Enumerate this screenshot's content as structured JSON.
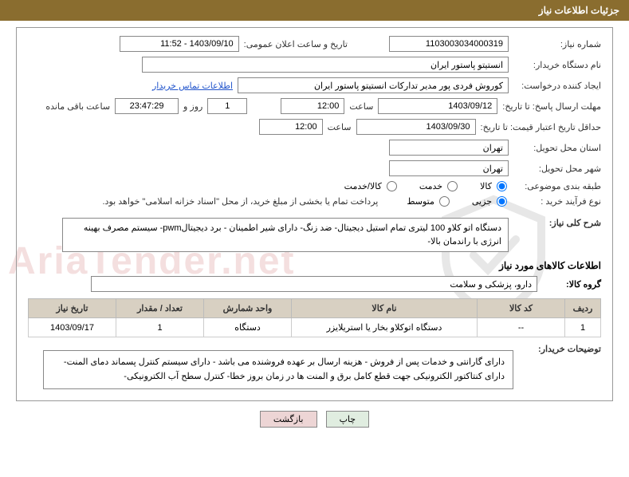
{
  "header": {
    "title": "جزئیات اطلاعات نیاز"
  },
  "fields": {
    "need_no_label": "شماره نیاز:",
    "need_no": "1103003034000319",
    "announce_label": "تاریخ و ساعت اعلان عمومی:",
    "announce_val": "1403/09/10 - 11:52",
    "buyer_org_label": "نام دستگاه خریدار:",
    "buyer_org": "انستیتو پاستور ایران",
    "requester_label": "ایجاد کننده درخواست:",
    "requester": "کوروش فردی پور مدیر تدارکات انستیتو پاستور ایران",
    "contact_link": "اطلاعات تماس خریدار",
    "reply_deadline_label": "مهلت ارسال پاسخ: تا تاریخ:",
    "reply_date": "1403/09/12",
    "time_label": "ساعت",
    "reply_time": "12:00",
    "days_val": "1",
    "days_and": "روز و",
    "countdown": "23:47:29",
    "remaining": "ساعت باقی مانده",
    "min_validity_label": "حداقل تاریخ اعتبار قیمت: تا تاریخ:",
    "min_validity_date": "1403/09/30",
    "min_validity_time": "12:00",
    "province_label": "استان محل تحویل:",
    "province": "تهران",
    "city_label": "شهر محل تحویل:",
    "city": "تهران",
    "subject_class_label": "طبقه بندی موضوعی:",
    "radio_goods": "کالا",
    "radio_service": "خدمت",
    "radio_both": "کالا/خدمت",
    "purchase_type_label": "نوع فرآیند خرید :",
    "radio_minor": "جزیی",
    "radio_medium": "متوسط",
    "payment_note": "پرداخت تمام یا بخشی از مبلغ خرید، از محل \"اسناد خزانه اسلامی\" خواهد بود.",
    "need_desc_label": "شرح کلی نیاز:",
    "need_desc": "دستگاه اتو کلاو 100 لیتری تمام استیل دیجیتال- ضد زنگ- دارای شیر اطمینان - برد دیجیتالpwm- سیستم مصرف بهینه انرژی با راندمان بالا-",
    "goods_section": "اطلاعات کالاهای مورد نیاز",
    "group_label": "گروه کالا:",
    "group_val": "دارو، پزشکی و سلامت",
    "buyer_notes_label": "توضیحات خریدار:",
    "buyer_notes": "دارای گارانتی و خدمات پس از فروش - هزینه ارسال بر عهده فروشنده می باشد - دارای سیستم کنترل پسماند دمای المنت- دارای کنتاکتور الکترونیکی جهت قطع کامل برق و المنت ها در زمان بروز خطا- کنترل سطح آب الکترونیکی-"
  },
  "table": {
    "columns": [
      "ردیف",
      "کد کالا",
      "نام کالا",
      "واحد شمارش",
      "تعداد / مقدار",
      "تاریخ نیاز"
    ],
    "rows": [
      [
        "1",
        "--",
        "دستگاه اتوکلاو بخار یا استریلایزر",
        "دستگاه",
        "1",
        "1403/09/17"
      ]
    ],
    "col_widths": [
      "45px",
      "110px",
      "auto",
      "110px",
      "110px",
      "110px"
    ]
  },
  "buttons": {
    "print": "چاپ",
    "back": "بازگشت"
  },
  "watermark": {
    "text": "AriaTender.net"
  },
  "colors": {
    "header_bg": "#8a6d2f",
    "th_bg": "#d8d0c2",
    "link": "#2255cc"
  }
}
